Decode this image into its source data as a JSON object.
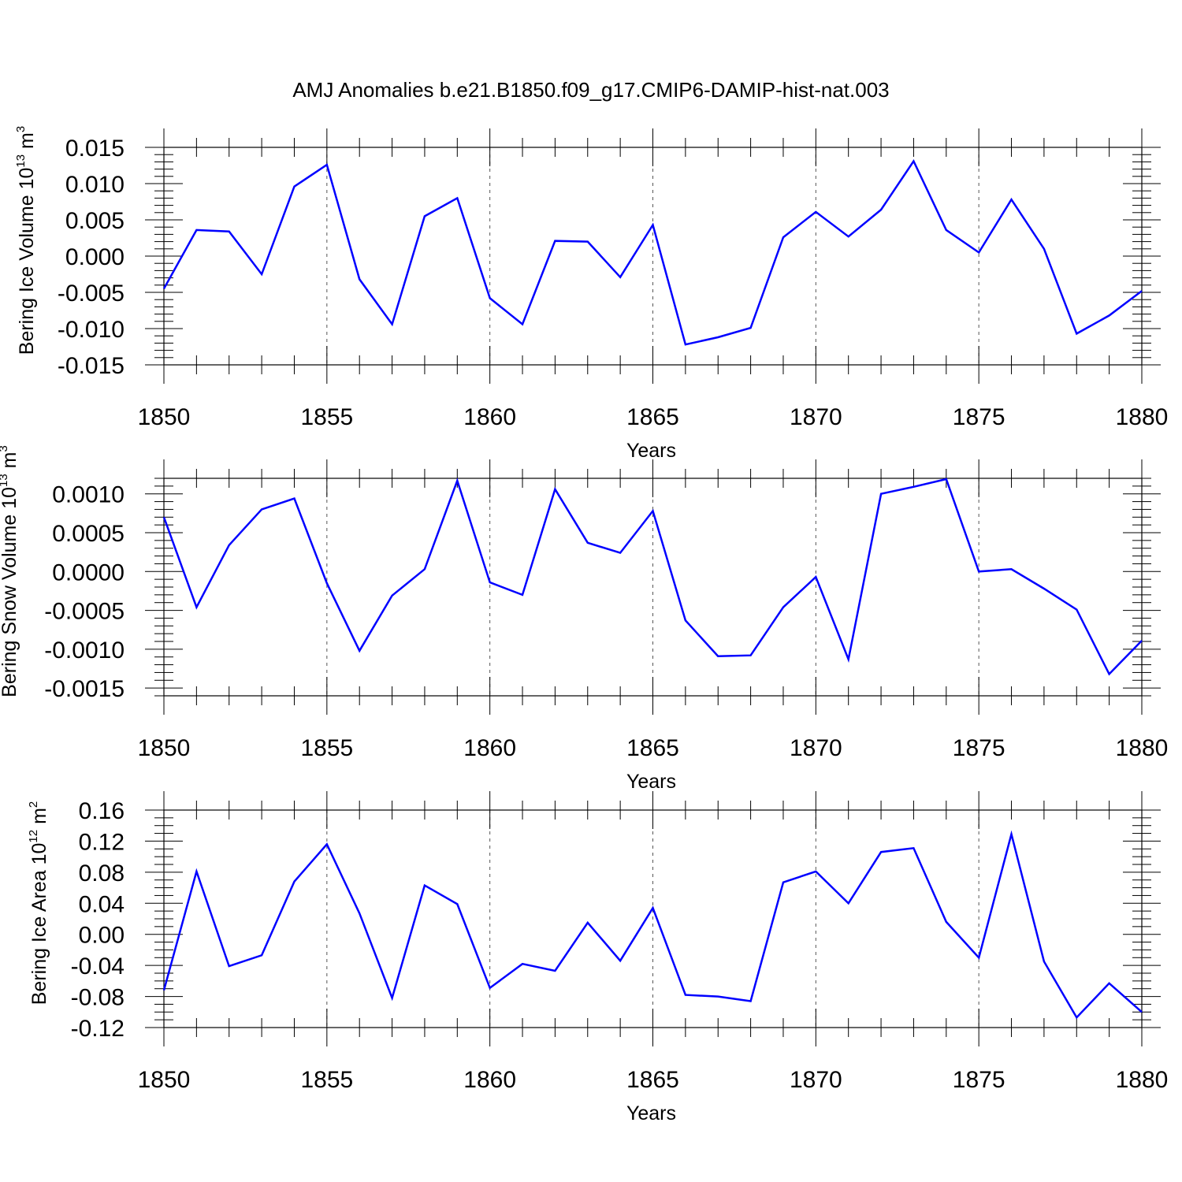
{
  "title": "AMJ Anomalies b.e21.B1850.f09_g17.CMIP6-DAMIP-hist-nat.003",
  "colors": {
    "line": "#0000ff",
    "axis": "#000000",
    "grid": "#555555"
  },
  "chart_data": [
    {
      "type": "line",
      "ylabel_main": "Bering Ice Volume 10",
      "ylabel_exp": "13",
      "ylabel_unit": " m",
      "ylabel_unit_exp": "3",
      "xlabel": "Years",
      "xlim": [
        1850,
        1880
      ],
      "ylim": [
        -0.015,
        0.015
      ],
      "xticks": [
        1850,
        1855,
        1860,
        1865,
        1870,
        1875,
        1880
      ],
      "xtick_labels": [
        "1850",
        "1855",
        "1860",
        "1865",
        "1870",
        "1875",
        "1880"
      ],
      "yticks": [
        -0.015,
        -0.01,
        -0.005,
        0,
        0.005,
        0.01,
        0.015
      ],
      "ytick_labels": [
        "-0.015",
        "-0.010",
        "-0.005",
        "0.000",
        "0.005",
        "0.010",
        "0.015"
      ],
      "yminor_step": 0.001,
      "x": [
        1850,
        1851,
        1852,
        1853,
        1854,
        1855,
        1856,
        1857,
        1858,
        1859,
        1860,
        1861,
        1862,
        1863,
        1864,
        1865,
        1866,
        1867,
        1868,
        1869,
        1870,
        1871,
        1872,
        1873,
        1874,
        1875,
        1876,
        1877,
        1878,
        1879,
        1880
      ],
      "values": [
        -0.0045,
        0.0036,
        0.0034,
        -0.0025,
        0.0096,
        0.0126,
        -0.0032,
        -0.0094,
        0.0055,
        0.008,
        -0.0058,
        -0.0094,
        0.0021,
        0.002,
        -0.0029,
        0.0043,
        -0.0122,
        -0.0112,
        -0.0099,
        0.0026,
        0.0061,
        0.0027,
        0.0064,
        0.0131,
        0.0036,
        0.0005,
        0.0078,
        0.001,
        -0.0107,
        -0.0082,
        -0.0048
      ]
    },
    {
      "type": "line",
      "ylabel_main": "Bering Snow Volume 10",
      "ylabel_exp": "13",
      "ylabel_unit": " m",
      "ylabel_unit_exp": "3",
      "xlabel": "Years",
      "xlim": [
        1850,
        1880
      ],
      "ylim": [
        -0.0016,
        0.0012
      ],
      "xticks": [
        1850,
        1855,
        1860,
        1865,
        1870,
        1875,
        1880
      ],
      "xtick_labels": [
        "1850",
        "1855",
        "1860",
        "1865",
        "1870",
        "1875",
        "1880"
      ],
      "yticks": [
        -0.0015,
        -0.001,
        -0.0005,
        0,
        0.0005,
        0.001
      ],
      "ytick_labels": [
        "-0.0015",
        "-0.0010",
        "-0.0005",
        "0.0000",
        "0.0005",
        "0.0010"
      ],
      "yminor_step": 0.0001,
      "x": [
        1850,
        1851,
        1852,
        1853,
        1854,
        1855,
        1856,
        1857,
        1858,
        1859,
        1860,
        1861,
        1862,
        1863,
        1864,
        1865,
        1866,
        1867,
        1868,
        1869,
        1870,
        1871,
        1872,
        1873,
        1874,
        1875,
        1876,
        1877,
        1878,
        1879,
        1880
      ],
      "values": [
        0.0007,
        -0.00046,
        0.00034,
        0.0008,
        0.00094,
        -0.00015,
        -0.00102,
        -0.00031,
        3e-05,
        0.00117,
        -0.00014,
        -0.0003,
        0.00106,
        0.00037,
        0.00024,
        0.00078,
        -0.00063,
        -0.00109,
        -0.00108,
        -0.00046,
        -7e-05,
        -0.00113,
        0.001,
        0.00109,
        0.00119,
        0.0,
        3e-05,
        -0.00022,
        -0.00049,
        -0.00132,
        -0.00089
      ]
    },
    {
      "type": "line",
      "ylabel_main": "Bering Ice Area 10",
      "ylabel_exp": "12",
      "ylabel_unit": " m",
      "ylabel_unit_exp": "2",
      "xlabel": "Years",
      "xlim": [
        1850,
        1880
      ],
      "ylim": [
        -0.12,
        0.16
      ],
      "xticks": [
        1850,
        1855,
        1860,
        1865,
        1870,
        1875,
        1880
      ],
      "xtick_labels": [
        "1850",
        "1855",
        "1860",
        "1865",
        "1870",
        "1875",
        "1880"
      ],
      "yticks": [
        -0.12,
        -0.08,
        -0.04,
        0,
        0.04,
        0.08,
        0.12,
        0.16
      ],
      "ytick_labels": [
        "-0.12",
        "-0.08",
        "-0.04",
        "0.00",
        "0.04",
        "0.08",
        "0.12",
        "0.16"
      ],
      "yminor_step": 0.01,
      "x": [
        1850,
        1851,
        1852,
        1853,
        1854,
        1855,
        1856,
        1857,
        1858,
        1859,
        1860,
        1861,
        1862,
        1863,
        1864,
        1865,
        1866,
        1867,
        1868,
        1869,
        1870,
        1871,
        1872,
        1873,
        1874,
        1875,
        1876,
        1877,
        1878,
        1879,
        1880
      ],
      "values": [
        -0.072,
        0.081,
        -0.041,
        -0.027,
        0.068,
        0.116,
        0.027,
        -0.082,
        0.063,
        0.039,
        -0.069,
        -0.038,
        -0.047,
        0.015,
        -0.034,
        0.034,
        -0.078,
        -0.08,
        -0.086,
        0.067,
        0.081,
        0.04,
        0.106,
        0.111,
        0.016,
        -0.03,
        0.129,
        -0.035,
        -0.107,
        -0.063,
        -0.1
      ]
    }
  ]
}
